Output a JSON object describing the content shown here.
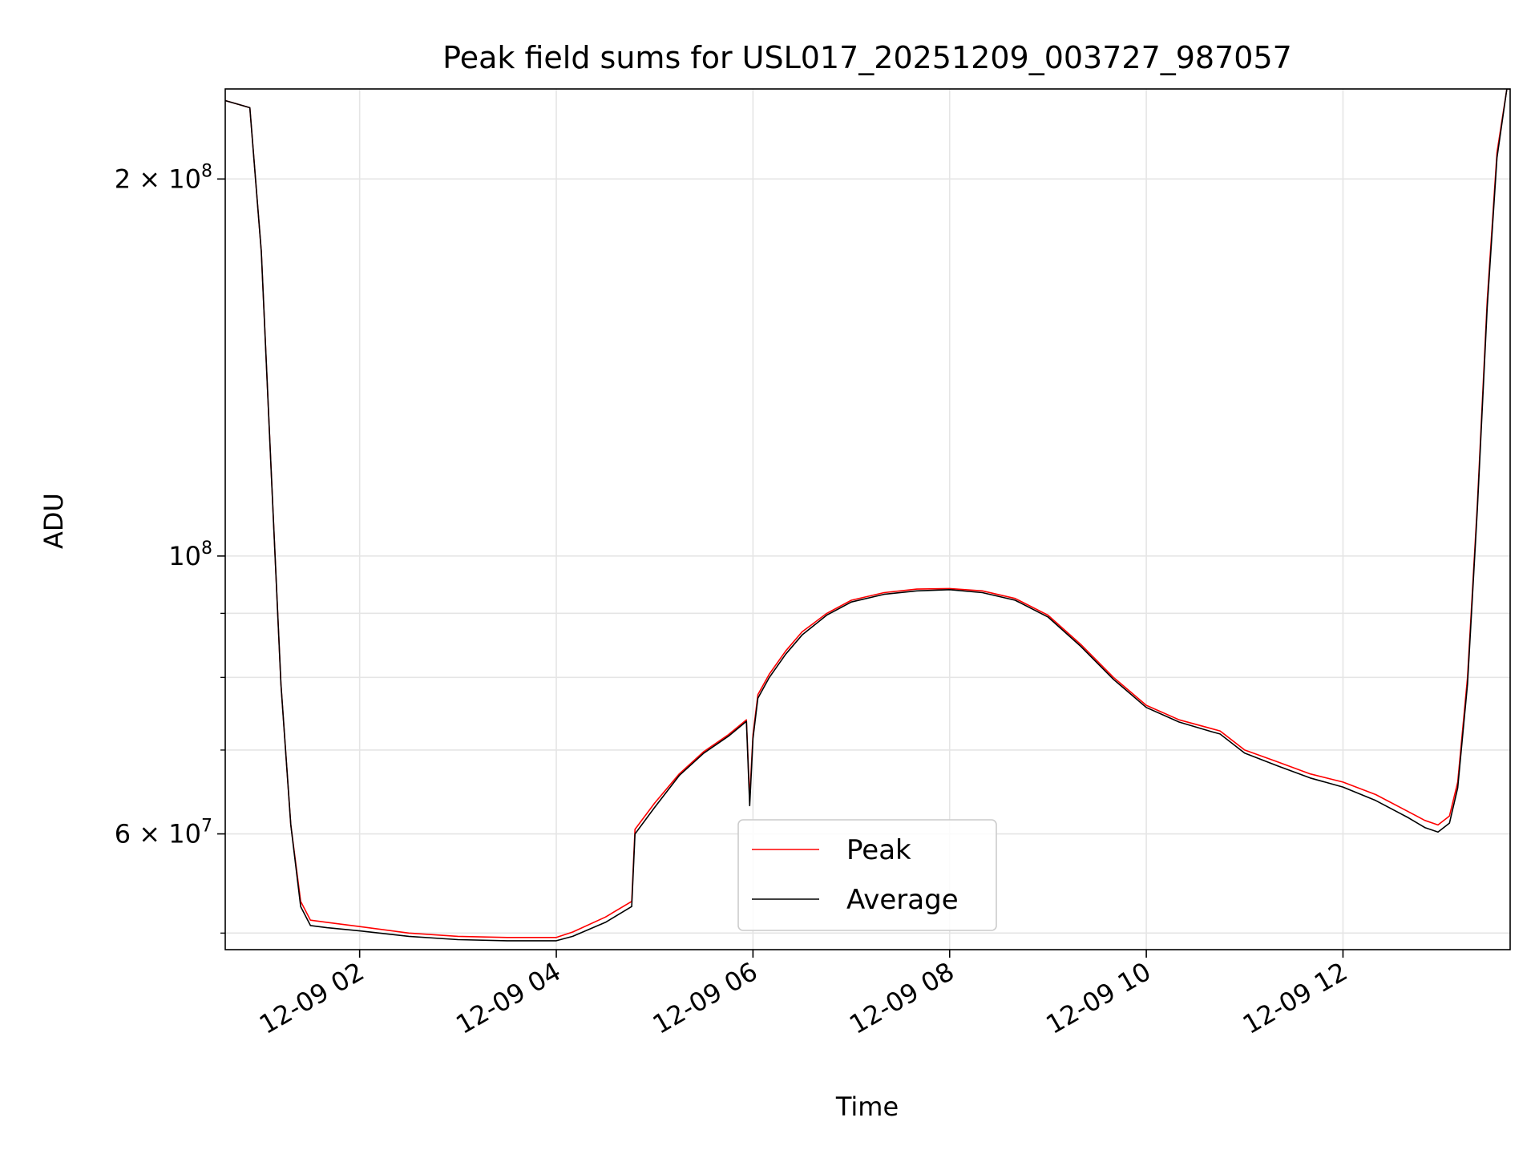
{
  "chart_data": {
    "type": "line",
    "title": "Peak field sums for USL017_20251209_003727_987057",
    "xlabel": "Time",
    "ylabel": "ADU",
    "y_scale": "log",
    "ylim": [
      48500000,
      236000000
    ],
    "x_range_hours": [
      "2025-12-09 00:38",
      "2025-12-09 13:42"
    ],
    "x_ticks": [
      {
        "hour": 2,
        "label": "12-09 02"
      },
      {
        "hour": 4,
        "label": "12-09 04"
      },
      {
        "hour": 6,
        "label": "12-09 06"
      },
      {
        "hour": 8,
        "label": "12-09 08"
      },
      {
        "hour": 10,
        "label": "12-09 10"
      },
      {
        "hour": 12,
        "label": "12-09 12"
      }
    ],
    "y_ticks": [
      {
        "value": 60000000,
        "base": "6 × 10",
        "exp": "7"
      },
      {
        "value": 100000000,
        "base": "10",
        "exp": "8"
      },
      {
        "value": 200000000,
        "base": "2 × 10",
        "exp": "8"
      }
    ],
    "y_minor_ticks": [
      50000000,
      70000000,
      80000000,
      90000000
    ],
    "grid": true,
    "legend_position": "lower-center",
    "colors": {
      "peak": "#ff0000",
      "average": "#000000",
      "grid": "#e5e5e5"
    },
    "series": [
      {
        "name": "Peak",
        "time": [
          "2025-12-09 00:38",
          "2025-12-09 00:48",
          "2025-12-09 00:53",
          "2025-12-09 01:00",
          "2025-12-09 01:06",
          "2025-12-09 01:12",
          "2025-12-09 01:18",
          "2025-12-09 01:24",
          "2025-12-09 01:30",
          "2025-12-09 01:40",
          "2025-12-09 02:00",
          "2025-12-09 02:30",
          "2025-12-09 03:00",
          "2025-12-09 03:30",
          "2025-12-09 04:00",
          "2025-12-09 04:10",
          "2025-12-09 04:30",
          "2025-12-09 04:46",
          "2025-12-09 04:48",
          "2025-12-09 05:00",
          "2025-12-09 05:15",
          "2025-12-09 05:30",
          "2025-12-09 05:45",
          "2025-12-09 05:56",
          "2025-12-09 05:58",
          "2025-12-09 06:00",
          "2025-12-09 06:03",
          "2025-12-09 06:10",
          "2025-12-09 06:20",
          "2025-12-09 06:30",
          "2025-12-09 06:45",
          "2025-12-09 07:00",
          "2025-12-09 07:20",
          "2025-12-09 07:40",
          "2025-12-09 08:00",
          "2025-12-09 08:20",
          "2025-12-09 08:40",
          "2025-12-09 09:00",
          "2025-12-09 09:20",
          "2025-12-09 09:40",
          "2025-12-09 10:00",
          "2025-12-09 10:20",
          "2025-12-09 10:40",
          "2025-12-09 10:45",
          "2025-12-09 11:00",
          "2025-12-09 11:20",
          "2025-12-09 11:40",
          "2025-12-09 12:00",
          "2025-12-09 12:20",
          "2025-12-09 12:40",
          "2025-12-09 12:50",
          "2025-12-09 12:58",
          "2025-12-09 13:05",
          "2025-12-09 13:10",
          "2025-12-09 13:16",
          "2025-12-09 13:22",
          "2025-12-09 13:28",
          "2025-12-09 13:34",
          "2025-12-09 13:40",
          "2025-12-09 13:42"
        ],
        "values": [
          231000000,
          229000000,
          228000000,
          175000000,
          117000000,
          79000000,
          61000000,
          53000000,
          51200000,
          51000000,
          50600000,
          50000000,
          49700000,
          49600000,
          49600000,
          50100000,
          51500000,
          53000000,
          60500000,
          63500000,
          67000000,
          69800000,
          72000000,
          74000000,
          64000000,
          72000000,
          77500000,
          80500000,
          84000000,
          87000000,
          90000000,
          92200000,
          93500000,
          94100000,
          94200000,
          93800000,
          92500000,
          89700000,
          85000000,
          80000000,
          76000000,
          74000000,
          72800000,
          72500000,
          70000000,
          68500000,
          67000000,
          66000000,
          64500000,
          62500000,
          61500000,
          61000000,
          62000000,
          66000000,
          80000000,
          110000000,
          160000000,
          210000000,
          236000000,
          236000000
        ]
      },
      {
        "name": "Average",
        "time": [
          "2025-12-09 00:38",
          "2025-12-09 00:48",
          "2025-12-09 00:53",
          "2025-12-09 01:00",
          "2025-12-09 01:06",
          "2025-12-09 01:12",
          "2025-12-09 01:18",
          "2025-12-09 01:24",
          "2025-12-09 01:30",
          "2025-12-09 01:40",
          "2025-12-09 02:00",
          "2025-12-09 02:30",
          "2025-12-09 03:00",
          "2025-12-09 03:30",
          "2025-12-09 04:00",
          "2025-12-09 04:10",
          "2025-12-09 04:30",
          "2025-12-09 04:46",
          "2025-12-09 04:48",
          "2025-12-09 05:00",
          "2025-12-09 05:15",
          "2025-12-09 05:30",
          "2025-12-09 05:45",
          "2025-12-09 05:56",
          "2025-12-09 05:58",
          "2025-12-09 06:00",
          "2025-12-09 06:03",
          "2025-12-09 06:10",
          "2025-12-09 06:20",
          "2025-12-09 06:30",
          "2025-12-09 06:45",
          "2025-12-09 07:00",
          "2025-12-09 07:20",
          "2025-12-09 07:40",
          "2025-12-09 08:00",
          "2025-12-09 08:20",
          "2025-12-09 08:40",
          "2025-12-09 09:00",
          "2025-12-09 09:20",
          "2025-12-09 09:40",
          "2025-12-09 10:00",
          "2025-12-09 10:20",
          "2025-12-09 10:40",
          "2025-12-09 10:45",
          "2025-12-09 11:00",
          "2025-12-09 11:20",
          "2025-12-09 11:40",
          "2025-12-09 12:00",
          "2025-12-09 12:20",
          "2025-12-09 12:40",
          "2025-12-09 12:50",
          "2025-12-09 12:58",
          "2025-12-09 13:05",
          "2025-12-09 13:10",
          "2025-12-09 13:16",
          "2025-12-09 13:22",
          "2025-12-09 13:28",
          "2025-12-09 13:34",
          "2025-12-09 13:40",
          "2025-12-09 13:42"
        ],
        "values": [
          231000000,
          229000000,
          228000000,
          175000000,
          117000000,
          79000000,
          61000000,
          52500000,
          50700000,
          50500000,
          50200000,
          49700000,
          49400000,
          49300000,
          49300000,
          49700000,
          51000000,
          52500000,
          60000000,
          63000000,
          66800000,
          69600000,
          71800000,
          73800000,
          63200000,
          71500000,
          77000000,
          80000000,
          83500000,
          86500000,
          89700000,
          91900000,
          93200000,
          93800000,
          94000000,
          93500000,
          92200000,
          89400000,
          84700000,
          79700000,
          75700000,
          73700000,
          72400000,
          72100000,
          69600000,
          68000000,
          66500000,
          65400000,
          63800000,
          61800000,
          60700000,
          60200000,
          61200000,
          65300000,
          79000000,
          109000000,
          158000000,
          208000000,
          236000000,
          236000000
        ]
      }
    ]
  }
}
